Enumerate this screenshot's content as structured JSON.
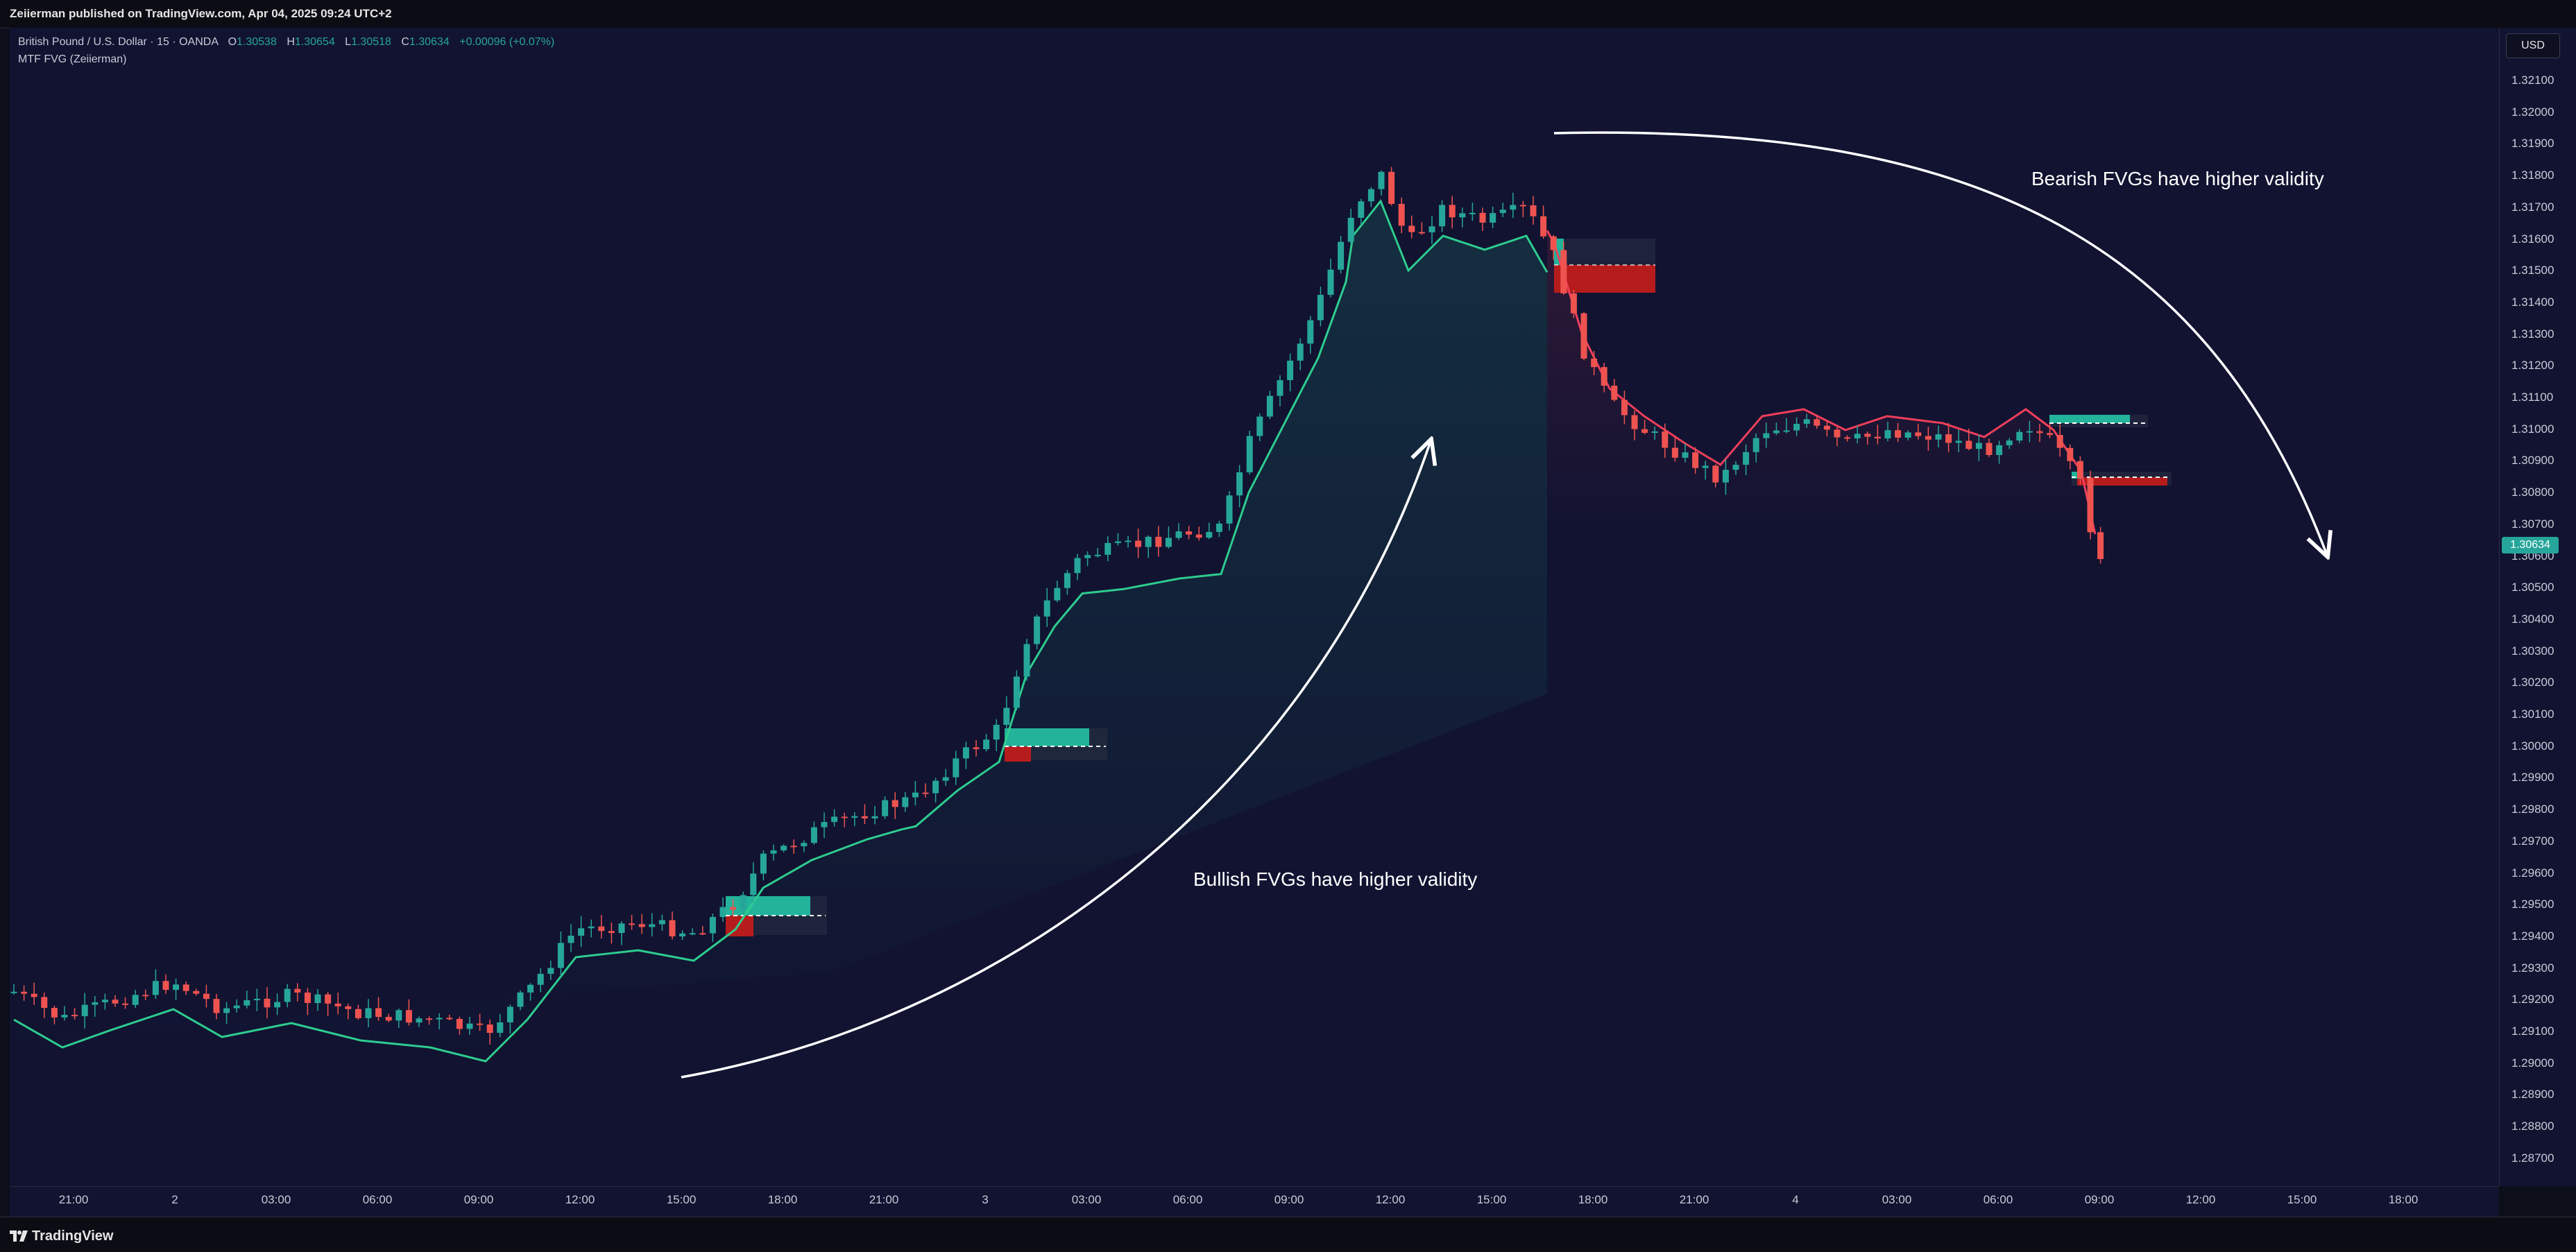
{
  "header": {
    "published": "Zeiierman published on TradingView.com, Apr 04, 2025 09:24 UTC+2"
  },
  "legend": {
    "symbol": "British Pound / U.S. Dollar · 15 · OANDA",
    "o_label": "O",
    "o_value": "1.30538",
    "h_label": "H",
    "h_value": "1.30654",
    "l_label": "L",
    "l_value": "1.30518",
    "c_label": "C",
    "c_value": "1.30634",
    "change": "+0.00096 (+0.07%)",
    "indicator": "MTF FVG (Zeiierman)"
  },
  "currency_button": "USD",
  "current_price": "1.30634",
  "price_ticks": [
    "1.32100",
    "1.32000",
    "1.31900",
    "1.31800",
    "1.31700",
    "1.31600",
    "1.31500",
    "1.31400",
    "1.31300",
    "1.31200",
    "1.31100",
    "1.31000",
    "1.30900",
    "1.30800",
    "1.30700",
    "1.30600",
    "1.30500",
    "1.30400",
    "1.30300",
    "1.30200",
    "1.30100",
    "1.30000",
    "1.29900",
    "1.29800",
    "1.29700",
    "1.29600",
    "1.29500",
    "1.29400",
    "1.29300",
    "1.29200",
    "1.29100",
    "1.29000",
    "1.28900",
    "1.28800",
    "1.28700"
  ],
  "time_labels": [
    "21:00",
    "2",
    "03:00",
    "06:00",
    "09:00",
    "12:00",
    "15:00",
    "18:00",
    "21:00",
    "3",
    "03:00",
    "06:00",
    "09:00",
    "12:00",
    "15:00",
    "18:00",
    "21:00",
    "4",
    "03:00",
    "06:00",
    "09:00",
    "12:00",
    "15:00",
    "18:00"
  ],
  "annotations": {
    "bullish": "Bullish FVGs have higher validity",
    "bearish": "Bearish FVGs have higher validity"
  },
  "colors": {
    "background": "#111331",
    "bull": "#26a69a",
    "bear": "#ef5350",
    "trend_bull": "#2ecc8f",
    "trend_bear": "#ef3f5b",
    "fvg_bull": "#22b39a",
    "fvg_bear": "#b71c1c"
  },
  "icons": {
    "brand": "tradingview-logo-icon"
  },
  "footer": {
    "brand": "TradingView"
  }
}
